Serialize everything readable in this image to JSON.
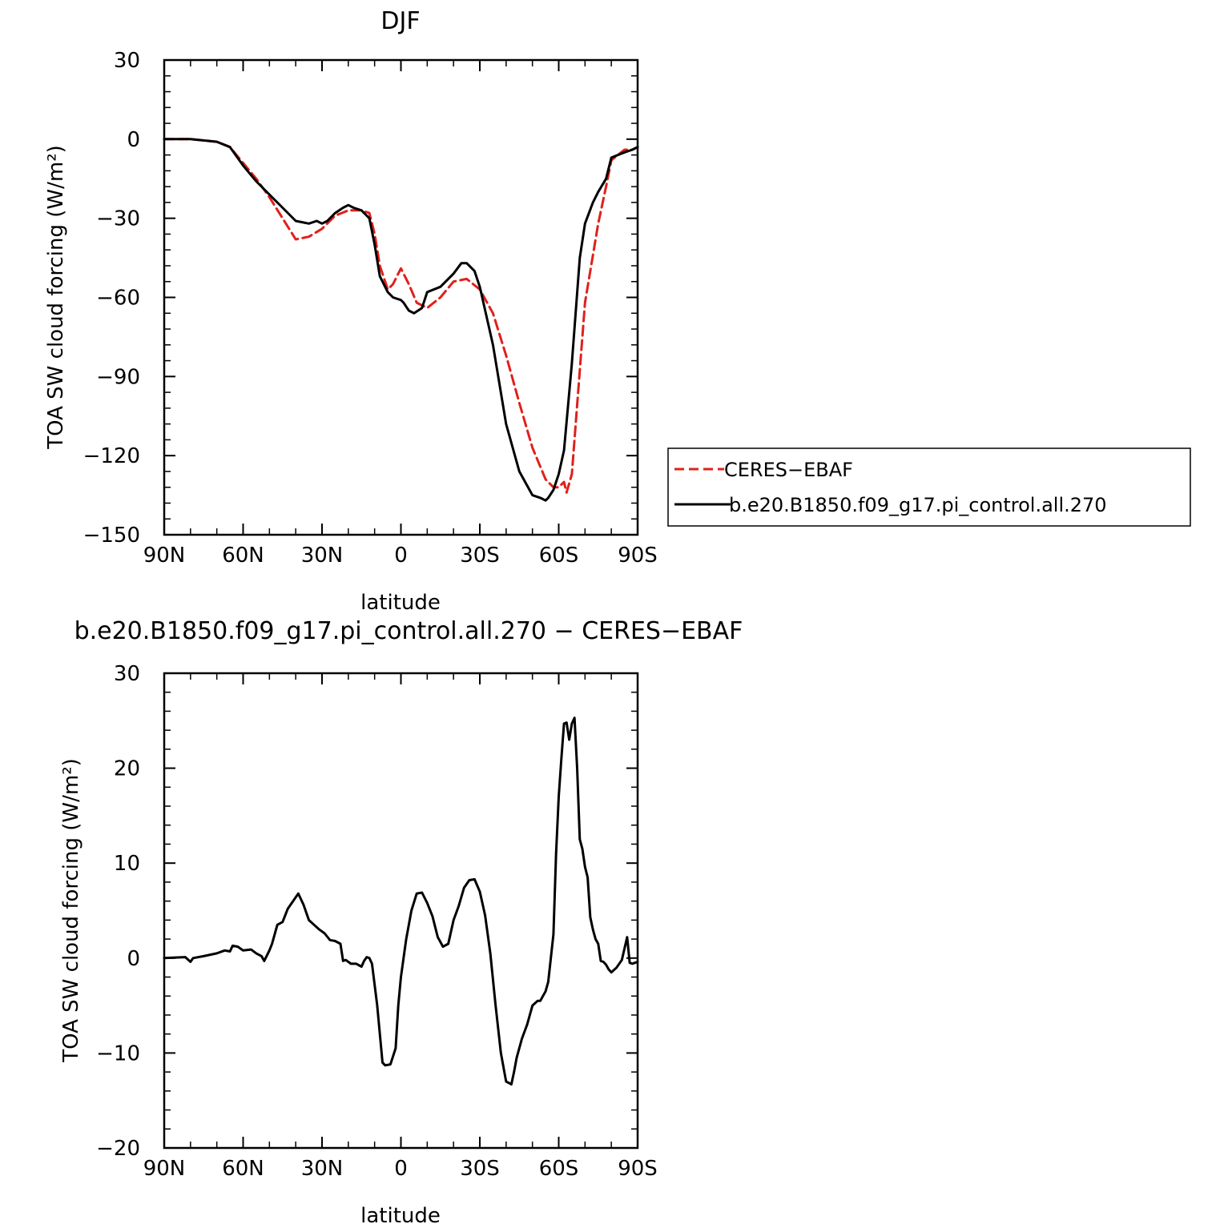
{
  "chart_data": [
    {
      "type": "line",
      "title": "DJF",
      "xlabel": "latitude",
      "ylabel": "TOA SW cloud forcing (W/m²)",
      "xlim": [
        90,
        -90
      ],
      "ylim": [
        -150,
        30
      ],
      "xticks": [
        90,
        60,
        30,
        0,
        -30,
        -60,
        -90
      ],
      "xtick_labels": [
        "90N",
        "60N",
        "30N",
        "0",
        "30S",
        "60S",
        "90S"
      ],
      "yticks": [
        30,
        0,
        -30,
        -60,
        -90,
        -120,
        -150
      ],
      "ytick_labels": [
        "30",
        "0",
        "−30",
        "−60",
        "−90",
        "−120",
        "−150"
      ],
      "grid": false,
      "legend_position": "right",
      "series": [
        {
          "name": "CERES−EBAF",
          "color": "#e0201b",
          "style": "dashed",
          "x": [
            90,
            80,
            70,
            65,
            60,
            55,
            50,
            45,
            40,
            35,
            30,
            25,
            20,
            15,
            12,
            10,
            8,
            5,
            3,
            0,
            -3,
            -6,
            -10,
            -15,
            -20,
            -25,
            -30,
            -35,
            -40,
            -45,
            -50,
            -55,
            -58,
            -60,
            -62,
            -63,
            -65,
            -70,
            -75,
            -78,
            -80,
            -85,
            -88,
            -90
          ],
          "y": [
            0,
            0,
            -1,
            -3,
            -9,
            -15,
            -22,
            -30,
            -38,
            -37,
            -34,
            -29,
            -27,
            -27,
            -28,
            -36,
            -48,
            -57,
            -55,
            -49,
            -55,
            -62,
            -64,
            -60,
            -54,
            -53,
            -57,
            -66,
            -82,
            -100,
            -117,
            -129,
            -132,
            -132,
            -130,
            -134,
            -127,
            -62,
            -32,
            -18,
            -8,
            -4,
            -4,
            -3
          ]
        },
        {
          "name": "b.e20.B1850.f09_g17.pi_control.all.270",
          "color": "#000000",
          "style": "solid",
          "x": [
            90,
            80,
            70,
            65,
            60,
            55,
            50,
            45,
            40,
            35,
            32,
            30,
            28,
            25,
            22,
            20,
            18,
            15,
            12,
            10,
            8,
            5,
            3,
            0,
            -1,
            -3,
            -5,
            -8,
            -10,
            -15,
            -20,
            -23,
            -25,
            -28,
            -30,
            -35,
            -40,
            -45,
            -50,
            -53,
            -55,
            -56,
            -58,
            -60,
            -62,
            -65,
            -68,
            -70,
            -73,
            -75,
            -78,
            -80,
            -85,
            -88,
            -90
          ],
          "y": [
            0,
            0,
            -1,
            -3,
            -10,
            -16,
            -21,
            -26,
            -31,
            -32,
            -31,
            -32,
            -31,
            -28,
            -26,
            -25,
            -26,
            -27,
            -30,
            -40,
            -52,
            -58,
            -60,
            -61,
            -62,
            -65,
            -66,
            -64,
            -58,
            -56,
            -51,
            -47,
            -47,
            -50,
            -56,
            -78,
            -108,
            -126,
            -135,
            -136,
            -137,
            -136,
            -133,
            -127,
            -118,
            -85,
            -45,
            -32,
            -24,
            -20,
            -15,
            -7,
            -5,
            -4,
            -3
          ]
        }
      ]
    },
    {
      "type": "line",
      "title": "b.e20.B1850.f09_g17.pi_control.all.270 − CERES−EBAF",
      "xlabel": "latitude",
      "ylabel": "TOA SW cloud forcing (W/m²)",
      "xlim": [
        90,
        -90
      ],
      "ylim": [
        -20,
        30
      ],
      "xticks": [
        90,
        60,
        30,
        0,
        -30,
        -60,
        -90
      ],
      "xtick_labels": [
        "90N",
        "60N",
        "30N",
        "0",
        "30S",
        "60S",
        "90S"
      ],
      "yticks": [
        30,
        20,
        10,
        0,
        -10,
        -20
      ],
      "ytick_labels": [
        "30",
        "20",
        "10",
        "0",
        "−10",
        "−20"
      ],
      "grid": false,
      "series": [
        {
          "color": "#000000",
          "style": "solid",
          "x": [
            90,
            82,
            80,
            79,
            75,
            70,
            67,
            65,
            64,
            62,
            60,
            57,
            55,
            53,
            52,
            50,
            49,
            47,
            45,
            43,
            41,
            39,
            37,
            35,
            33,
            31,
            29,
            27,
            25,
            23,
            22,
            21,
            19,
            17,
            15,
            14,
            13,
            12,
            11,
            9,
            7,
            6,
            4,
            2,
            1,
            0,
            -2,
            -4,
            -6,
            -8,
            -10,
            -12,
            -14,
            -16,
            -18,
            -20,
            -22,
            -24,
            -26,
            -28,
            -30,
            -32,
            -34,
            -36,
            -38,
            -40,
            -42,
            -43,
            -44,
            -46,
            -48,
            -50,
            -52,
            -53,
            -55,
            -56,
            -58,
            -59,
            -60,
            -61,
            -62,
            -63,
            -64,
            -65,
            -66,
            -67,
            -68,
            -69,
            -70,
            -71,
            -72,
            -73,
            -74,
            -75,
            -76,
            -77,
            -78,
            -79,
            -80,
            -82,
            -84,
            -86,
            -87,
            -88,
            -89,
            -90
          ],
          "y": [
            0,
            0.1,
            -0.4,
            0,
            0.2,
            0.5,
            0.8,
            0.7,
            1.3,
            1.2,
            0.8,
            0.9,
            0.5,
            0.2,
            -0.3,
            0.8,
            1.5,
            3.5,
            3.8,
            5.2,
            6.0,
            6.8,
            5.6,
            4.0,
            3.5,
            3.0,
            2.6,
            1.9,
            1.8,
            1.5,
            -0.3,
            -0.2,
            -0.6,
            -0.6,
            -0.9,
            -0.3,
            0.1,
            0.0,
            -0.6,
            -5.0,
            -11.0,
            -11.3,
            -11.2,
            -9.5,
            -5.0,
            -2.0,
            2.0,
            5.0,
            6.8,
            6.9,
            5.8,
            4.4,
            2.2,
            1.2,
            1.5,
            4.0,
            5.5,
            7.4,
            8.2,
            8.3,
            7.0,
            4.5,
            0.5,
            -5.0,
            -10.0,
            -13.0,
            -13.3,
            -12.0,
            -10.5,
            -8.5,
            -7.0,
            -5.0,
            -4.5,
            -4.5,
            -3.5,
            -2.5,
            2.5,
            11.0,
            17.0,
            21.0,
            24.7,
            24.8,
            23.0,
            24.7,
            25.3,
            20.0,
            12.5,
            11.5,
            9.6,
            8.5,
            4.3,
            3.0,
            2.0,
            1.5,
            -0.3,
            -0.4,
            -0.7,
            -1.2,
            -1.5,
            -1.0,
            -0.2,
            2.2,
            -0.5,
            -0.6,
            -0.5,
            -0.4
          ]
        }
      ]
    }
  ]
}
